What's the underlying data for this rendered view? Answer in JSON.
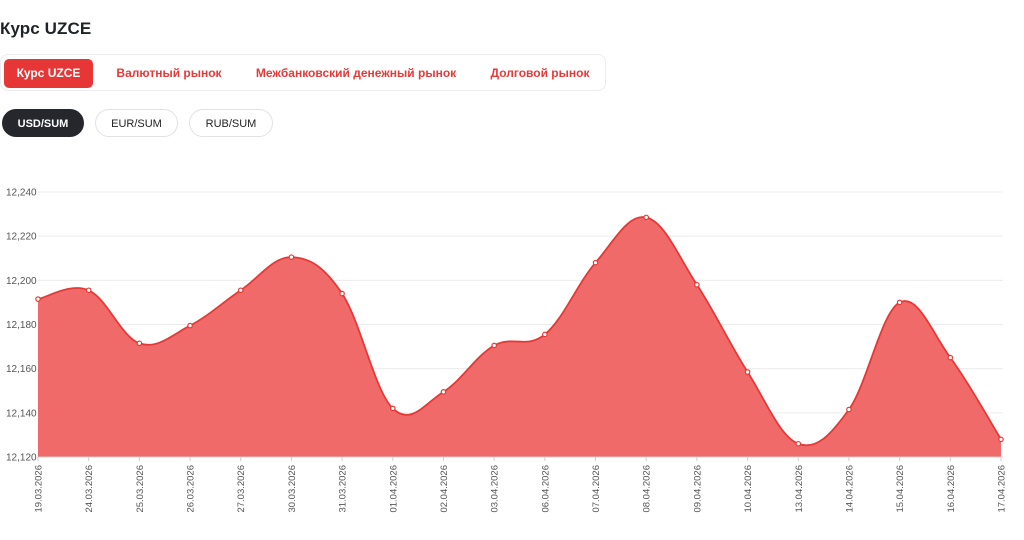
{
  "page": {
    "title": "Курс UZCE"
  },
  "tabs": [
    {
      "label": "Курс UZCE",
      "active": true
    },
    {
      "label": "Валютный рынок",
      "active": false
    },
    {
      "label": "Межбанковский денежный рынок",
      "active": false
    },
    {
      "label": "Долговой рынок",
      "active": false
    }
  ],
  "pairs": [
    {
      "label": "USD/SUM",
      "active": true
    },
    {
      "label": "EUR/SUM",
      "active": false
    },
    {
      "label": "RUB/SUM",
      "active": false
    }
  ],
  "colors": {
    "accent": "#e63636",
    "area_fill": "#f06a6a",
    "line": "#e53935",
    "pill_active": "#25272c"
  },
  "chart_data": {
    "type": "area",
    "x": [
      "19.03.2026",
      "24.03.2026",
      "25.03.2026",
      "26.03.2026",
      "27.03.2026",
      "30.03.2026",
      "31.03.2026",
      "01.04.2026",
      "02.04.2026",
      "03.04.2026",
      "06.04.2026",
      "07.04.2026",
      "08.04.2026",
      "09.04.2026",
      "10.04.2026",
      "13.04.2026",
      "14.04.2026",
      "15.04.2026",
      "16.04.2026",
      "17.04.2026"
    ],
    "series": [
      {
        "values": [
          12191.5,
          12195.5,
          12171.5,
          12179.5,
          12195.5,
          12210.5,
          12194,
          12142,
          12149.5,
          12170.5,
          12175.5,
          12208,
          12228.5,
          12198,
          12158.5,
          12126,
          12141.5,
          12190,
          12165,
          12128
        ]
      }
    ],
    "ylim": [
      12120,
      12240
    ],
    "yticks": [
      "12,120",
      "12,140",
      "12,160",
      "12,180",
      "12,200",
      "12,220",
      "12,240"
    ],
    "ytick_values": [
      12120,
      12140,
      12160,
      12180,
      12200,
      12220,
      12240
    ],
    "grid": true,
    "title": "",
    "xlabel": "",
    "ylabel": ""
  }
}
